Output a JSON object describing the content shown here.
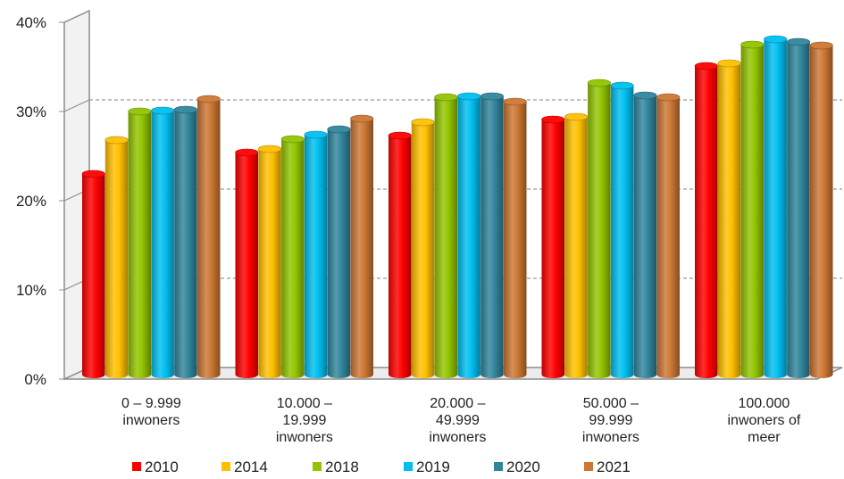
{
  "chart_data": {
    "type": "bar",
    "title": "",
    "xlabel": "",
    "ylabel": "",
    "ylim": [
      0,
      40
    ],
    "y_ticks": [
      "0%",
      "10%",
      "20%",
      "30%",
      "40%"
    ],
    "grid": true,
    "legend_position": "bottom",
    "categories": [
      [
        "0 – 9.999",
        "inwoners"
      ],
      [
        "10.000 –",
        "19.999",
        "inwoners"
      ],
      [
        "20.000 –",
        "49.999",
        "inwoners"
      ],
      [
        "50.000 –",
        "99.999",
        "inwoners"
      ],
      [
        "100.000",
        "inwoners of",
        "meer"
      ]
    ],
    "series": [
      {
        "name": "2010",
        "color": "#ff0000",
        "values": [
          22.2,
          24.6,
          26.5,
          28.3,
          34.3
        ]
      },
      {
        "name": "2014",
        "color": "#ffc000",
        "values": [
          26.0,
          25.0,
          28.0,
          28.6,
          34.6
        ]
      },
      {
        "name": "2018",
        "color": "#92c400",
        "values": [
          29.2,
          26.1,
          30.8,
          32.4,
          36.7
        ]
      },
      {
        "name": "2019",
        "color": "#00bff0",
        "values": [
          29.3,
          26.6,
          30.9,
          32.1,
          37.3
        ]
      },
      {
        "name": "2020",
        "color": "#31859c",
        "values": [
          29.4,
          27.2,
          30.9,
          31.0,
          37.0
        ]
      },
      {
        "name": "2021",
        "color": "#cc7733",
        "values": [
          30.6,
          28.4,
          30.3,
          30.8,
          36.6
        ]
      }
    ]
  }
}
